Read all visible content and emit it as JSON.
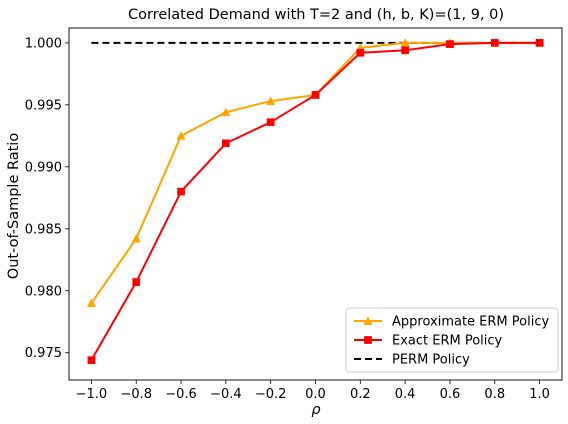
{
  "chart_data": {
    "type": "line",
    "title": "Correlated Demand with T=2 and (h, b, K)=(1, 9, 0)",
    "xlabel": "ρ",
    "ylabel": "Out-of-Sample Ratio",
    "xlim": [
      -1.1,
      1.1
    ],
    "ylim": [
      0.9728,
      1.0012
    ],
    "xticks": [
      -1.0,
      -0.8,
      -0.6,
      -0.4,
      -0.2,
      0.0,
      0.2,
      0.4,
      0.6,
      0.8,
      1.0
    ],
    "xtick_labels": [
      "−1.0",
      "−0.8",
      "−0.6",
      "−0.4",
      "−0.2",
      "0.0",
      "0.2",
      "0.4",
      "0.6",
      "0.8",
      "1.0"
    ],
    "yticks": [
      0.975,
      0.98,
      0.985,
      0.99,
      0.995,
      1.0
    ],
    "ytick_labels": [
      "0.975",
      "0.980",
      "0.985",
      "0.990",
      "0.995",
      "1.000"
    ],
    "grid": false,
    "legend_position": "lower-right",
    "series": [
      {
        "name": "Approximate ERM Policy",
        "color": "#FFA500",
        "marker": "triangle",
        "linestyle": "solid",
        "x": [
          -1.0,
          -0.8,
          -0.6,
          -0.4,
          -0.2,
          0.0,
          0.2,
          0.4,
          0.6,
          0.8,
          1.0
        ],
        "y": [
          0.979,
          0.9842,
          0.9925,
          0.9944,
          0.9953,
          0.9958,
          0.9996,
          1.0,
          1.0,
          1.0,
          1.0
        ]
      },
      {
        "name": "Exact ERM Policy",
        "color": "#FF0000",
        "marker": "square",
        "linestyle": "solid",
        "x": [
          -1.0,
          -0.8,
          -0.6,
          -0.4,
          -0.2,
          0.0,
          0.2,
          0.4,
          0.6,
          0.8,
          1.0
        ],
        "y": [
          0.9744,
          0.9807,
          0.988,
          0.9919,
          0.9936,
          0.9958,
          0.9992,
          0.9994,
          0.9999,
          1.0,
          1.0
        ]
      },
      {
        "name": "PERM Policy",
        "color": "#000000",
        "marker": "none",
        "linestyle": "dashed",
        "x": [
          -1.0,
          1.0
        ],
        "y": [
          1.0,
          1.0
        ]
      }
    ]
  }
}
